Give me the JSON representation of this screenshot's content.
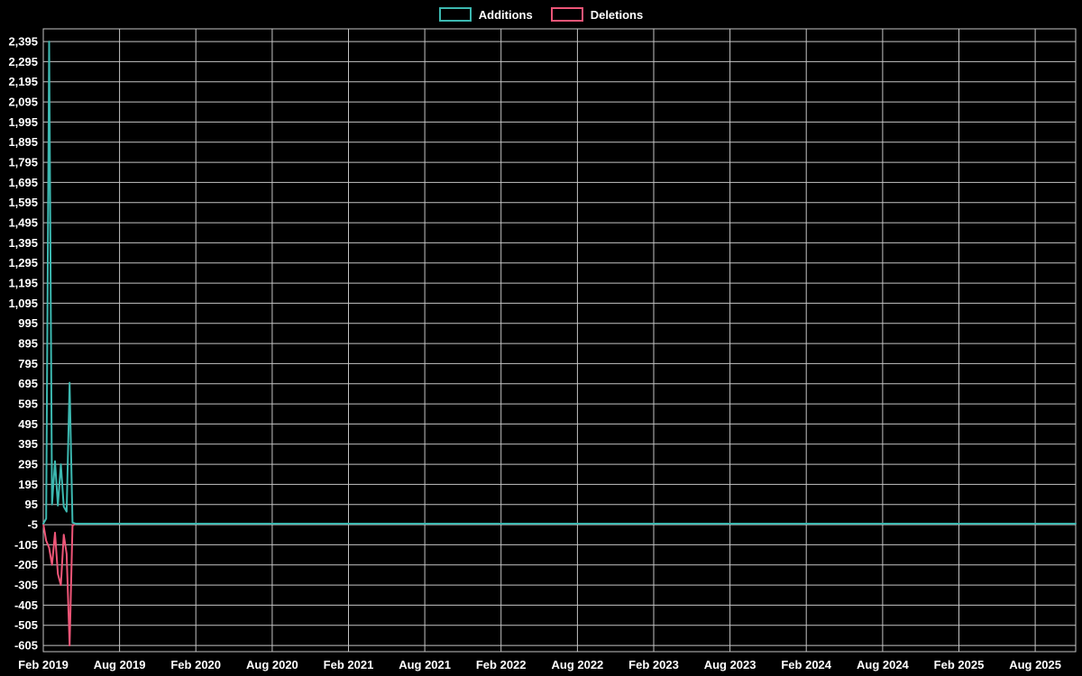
{
  "page": {
    "background": "#000000",
    "text_color": "#ffffff"
  },
  "chart_data": {
    "type": "line",
    "title": "",
    "subtitle": "",
    "legend": {
      "position": "top-center",
      "entries": [
        "Additions",
        "Deletions"
      ]
    },
    "background": "#000000",
    "grid_color": "#c4c4c4",
    "text_color": "#ffffff",
    "x_axis": {
      "label": "",
      "tick_labels": [
        "Feb 2019",
        "Aug 2019",
        "Feb 2020",
        "Aug 2020",
        "Feb 2021",
        "Aug 2021",
        "Feb 2022",
        "Aug 2022",
        "Feb 2023",
        "Aug 2023",
        "Feb 2024",
        "Aug 2024",
        "Feb 2025",
        "Aug 2025"
      ],
      "tick_interval_months": 6,
      "tick_interval_weeks": 26.0893,
      "domain_weeks": [
        0,
        353
      ],
      "unit": "weeks since Feb 2019",
      "grid": true
    },
    "y_axis": {
      "label": "",
      "tick_min": -605,
      "tick_max": 2395,
      "tick_step": 100,
      "domain": [
        -636,
        2458
      ],
      "grid": true
    },
    "series": [
      {
        "name": "Additions",
        "color": "#3cb8b0",
        "points": [
          [
            0,
            0
          ],
          [
            1,
            25
          ],
          [
            2,
            2395
          ],
          [
            3,
            95
          ],
          [
            4,
            310
          ],
          [
            5,
            90
          ],
          [
            6,
            295
          ],
          [
            7,
            85
          ],
          [
            8,
            60
          ],
          [
            9,
            700
          ],
          [
            10,
            5
          ],
          [
            11,
            0
          ],
          [
            353,
            0
          ]
        ]
      },
      {
        "name": "Deletions",
        "color": "#ee5577",
        "points": [
          [
            0,
            0
          ],
          [
            1,
            -85
          ],
          [
            2,
            -120
          ],
          [
            3,
            -205
          ],
          [
            4,
            -45
          ],
          [
            5,
            -250
          ],
          [
            6,
            -305
          ],
          [
            7,
            -55
          ],
          [
            8,
            -150
          ],
          [
            9,
            -605
          ],
          [
            10,
            -10
          ],
          [
            11,
            0
          ],
          [
            353,
            0
          ]
        ]
      }
    ]
  }
}
